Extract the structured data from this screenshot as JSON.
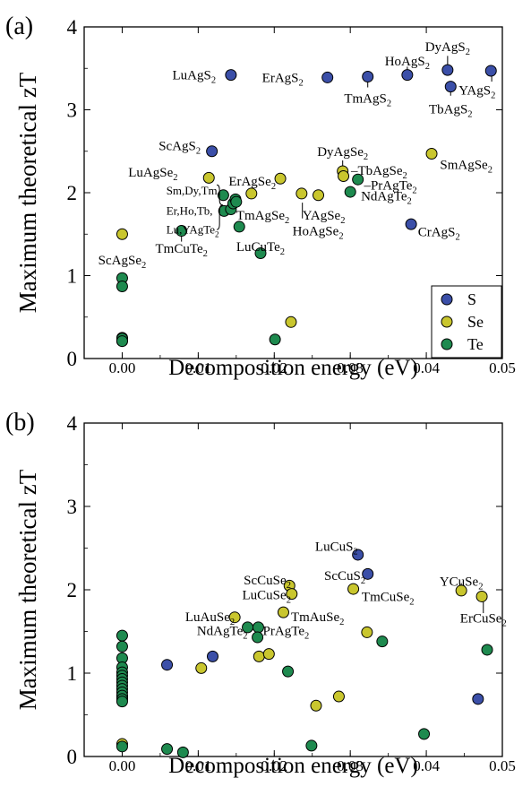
{
  "chart_data": [
    {
      "type": "scatter",
      "panel_label": "(a)",
      "xlabel": "Decomposition energy (eV)",
      "ylabel": "Maximum theoretical zT",
      "xlim": [
        -0.005,
        0.05
      ],
      "ylim": [
        0,
        4
      ],
      "xticks": [
        "0.00",
        "0.01",
        "0.02",
        "0.03",
        "0.04",
        "0.05"
      ],
      "xtick_values": [
        0,
        0.01,
        0.02,
        0.03,
        0.04,
        0.05
      ],
      "yticks": [
        "0",
        "1",
        "2",
        "3",
        "4"
      ],
      "ytick_values": [
        0,
        1,
        2,
        3,
        4
      ],
      "grid": false,
      "legend_position": "bottom-right",
      "legend": [
        {
          "label": "S",
          "color": "#3b4fa8"
        },
        {
          "label": "Se",
          "color": "#c9c62e"
        },
        {
          "label": "Te",
          "color": "#1e8a4f"
        }
      ],
      "series": [
        {
          "name": "S",
          "color": "#3b4fa8",
          "points": [
            [
              0.0118,
              2.5
            ],
            [
              0.0143,
              3.42
            ],
            [
              0.027,
              3.39
            ],
            [
              0.0323,
              3.4
            ],
            [
              0.0375,
              3.42
            ],
            [
              0.0428,
              3.48
            ],
            [
              0.0432,
              3.28
            ],
            [
              0.0485,
              3.47
            ],
            [
              0.038,
              1.62
            ]
          ]
        },
        {
          "name": "Se",
          "color": "#c9c62e",
          "points": [
            [
              0.0,
              1.5
            ],
            [
              0.0,
              0.25
            ],
            [
              0.0,
              0.21
            ],
            [
              0.0114,
              2.18
            ],
            [
              0.017,
              1.99
            ],
            [
              0.0208,
              2.17
            ],
            [
              0.0236,
              1.99
            ],
            [
              0.0258,
              1.97
            ],
            [
              0.029,
              2.26
            ],
            [
              0.0291,
              2.2
            ],
            [
              0.0407,
              2.47
            ],
            [
              0.0222,
              0.44
            ]
          ]
        },
        {
          "name": "Te",
          "color": "#1e8a4f",
          "points": [
            [
              0.0,
              0.97
            ],
            [
              0.0,
              0.87
            ],
            [
              0.0,
              0.24
            ],
            [
              0.0,
              0.21
            ],
            [
              0.0078,
              1.54
            ],
            [
              0.0133,
              1.97
            ],
            [
              0.0134,
              1.78
            ],
            [
              0.0143,
              1.8
            ],
            [
              0.0146,
              1.87
            ],
            [
              0.0149,
              1.92
            ],
            [
              0.015,
              1.89
            ],
            [
              0.0154,
              1.59
            ],
            [
              0.0182,
              1.27
            ],
            [
              0.0201,
              0.23
            ],
            [
              0.03,
              2.01
            ],
            [
              0.031,
              2.16
            ]
          ]
        }
      ],
      "annotations": [
        {
          "parts": [
            [
              "LuAgS",
              ""
            ],
            [
              "2",
              "sub"
            ]
          ],
          "x": 0.0066,
          "y": 3.42,
          "anchor": "start"
        },
        {
          "parts": [
            [
              "ErAgS",
              ""
            ],
            [
              "2",
              "sub"
            ]
          ],
          "x": 0.0184,
          "y": 3.39,
          "anchor": "start"
        },
        {
          "parts": [
            [
              "TmAgS",
              ""
            ],
            [
              "2",
              "sub"
            ]
          ],
          "x": 0.0323,
          "y": 3.14,
          "anchor": "middle"
        },
        {
          "parts": [
            [
              "HoAgS",
              ""
            ],
            [
              "2",
              "sub"
            ]
          ],
          "x": 0.0375,
          "y": 3.59,
          "anchor": "middle"
        },
        {
          "parts": [
            [
              "DyAgS",
              ""
            ],
            [
              "2",
              "sub"
            ]
          ],
          "x": 0.0428,
          "y": 3.76,
          "anchor": "middle"
        },
        {
          "parts": [
            [
              "YAgS",
              ""
            ],
            [
              "2",
              "sub"
            ]
          ],
          "x": 0.0491,
          "y": 3.24,
          "anchor": "end"
        },
        {
          "parts": [
            [
              "TbAgS",
              ""
            ],
            [
              "2",
              "sub"
            ]
          ],
          "x": 0.0432,
          "y": 3.01,
          "anchor": "middle"
        },
        {
          "parts": [
            [
              "ScAgS",
              ""
            ],
            [
              "2",
              "sub"
            ]
          ],
          "x": 0.0048,
          "y": 2.57,
          "anchor": "start"
        },
        {
          "parts": [
            [
              "LuAgSe",
              ""
            ],
            [
              "2",
              "sub"
            ]
          ],
          "x": 0.0008,
          "y": 2.25,
          "anchor": "start"
        },
        {
          "parts": [
            [
              "ErAgSe",
              ""
            ],
            [
              "2",
              "sub"
            ]
          ],
          "x": 0.014,
          "y": 2.14,
          "anchor": "start"
        },
        {
          "parts": [
            [
              "DyAgSe",
              ""
            ],
            [
              "2",
              "sub"
            ]
          ],
          "x": 0.029,
          "y": 2.5,
          "anchor": "middle"
        },
        {
          "parts": [
            [
              "–TbAgSe",
              ""
            ],
            [
              "2",
              "sub"
            ]
          ],
          "x": 0.0301,
          "y": 2.27,
          "anchor": "start"
        },
        {
          "parts": [
            [
              "–PrAgTe",
              ""
            ],
            [
              "2",
              "sub"
            ]
          ],
          "x": 0.0318,
          "y": 2.09,
          "anchor": "start"
        },
        {
          "parts": [
            [
              "SmAgSe",
              ""
            ],
            [
              "2",
              "sub"
            ]
          ],
          "x": 0.0418,
          "y": 2.34,
          "anchor": "start"
        },
        {
          "parts": [
            [
              "Sm,Dy,Tm,",
              ""
            ]
          ],
          "x": 0.0058,
          "y": 2.03,
          "anchor": "start",
          "small": true
        },
        {
          "parts": [
            [
              "Er,Ho,Tb,",
              ""
            ]
          ],
          "x": 0.0058,
          "y": 1.79,
          "anchor": "start",
          "small": true
        },
        {
          "parts": [
            [
              "Lu,YAgTe",
              ""
            ],
            [
              "2",
              "sub"
            ]
          ],
          "x": 0.0058,
          "y": 1.56,
          "anchor": "start",
          "small": true
        },
        {
          "parts": [
            [
              "TmAgSe",
              ""
            ],
            [
              "2",
              "sub"
            ]
          ],
          "x": 0.015,
          "y": 1.73,
          "anchor": "start"
        },
        {
          "parts": [
            [
              "YAgSe",
              ""
            ],
            [
              "2",
              "sub"
            ]
          ],
          "x": 0.0237,
          "y": 1.73,
          "anchor": "start"
        },
        {
          "parts": [
            [
              "NdAgTe",
              ""
            ],
            [
              "2",
              "sub"
            ]
          ],
          "x": 0.0314,
          "y": 1.96,
          "anchor": "start"
        },
        {
          "parts": [
            [
              "HoAgSe",
              ""
            ],
            [
              "2",
              "sub"
            ]
          ],
          "x": 0.0224,
          "y": 1.54,
          "anchor": "start"
        },
        {
          "parts": [
            [
              "CrAgS",
              ""
            ],
            [
              "2",
              "sub"
            ]
          ],
          "x": 0.0389,
          "y": 1.53,
          "anchor": "start"
        },
        {
          "parts": [
            [
              "ScAgSe",
              ""
            ],
            [
              "2",
              "sub"
            ]
          ],
          "x": 0.0,
          "y": 1.19,
          "anchor": "middle"
        },
        {
          "parts": [
            [
              "TmCuTe",
              ""
            ],
            [
              "2",
              "sub"
            ]
          ],
          "x": 0.0078,
          "y": 1.33,
          "anchor": "middle"
        },
        {
          "parts": [
            [
              "LuCuTe",
              ""
            ],
            [
              "2",
              "sub"
            ]
          ],
          "x": 0.015,
          "y": 1.35,
          "anchor": "start"
        }
      ],
      "leaders": [
        [
          [
            0.0323,
            3.27
          ],
          [
            0.0323,
            3.37
          ]
        ],
        [
          [
            0.0375,
            3.46
          ],
          [
            0.0375,
            3.52
          ]
        ],
        [
          [
            0.0428,
            3.52
          ],
          [
            0.0428,
            3.65
          ]
        ],
        [
          [
            0.0432,
            3.17
          ],
          [
            0.0432,
            3.24
          ]
        ],
        [
          [
            0.029,
            2.3
          ],
          [
            0.029,
            2.39
          ]
        ],
        [
          [
            0.0486,
            3.34
          ],
          [
            0.0486,
            3.43
          ]
        ],
        [
          [
            0.0237,
            1.88
          ],
          [
            0.0237,
            1.69
          ]
        ],
        [
          [
            0.0078,
            1.41
          ],
          [
            0.0078,
            1.5
          ]
        ]
      ]
    },
    {
      "type": "scatter",
      "panel_label": "(b)",
      "xlabel": "Decomposition energy (eV)",
      "ylabel": "Maximum theoretical zT",
      "xlim": [
        -0.005,
        0.05
      ],
      "ylim": [
        0,
        4
      ],
      "xticks": [
        "0.00",
        "0.01",
        "0.02",
        "0.03",
        "0.04",
        "0.05"
      ],
      "xtick_values": [
        0,
        0.01,
        0.02,
        0.03,
        0.04,
        0.05
      ],
      "yticks": [
        "0",
        "1",
        "2",
        "3",
        "4"
      ],
      "ytick_values": [
        0,
        1,
        2,
        3,
        4
      ],
      "grid": false,
      "series": [
        {
          "name": "S",
          "color": "#3b4fa8",
          "points": [
            [
              0.0,
              0.72
            ],
            [
              0.0059,
              1.1
            ],
            [
              0.0119,
              1.2
            ],
            [
              0.031,
              2.42
            ],
            [
              0.0323,
              2.19
            ],
            [
              0.0468,
              0.69
            ]
          ]
        },
        {
          "name": "Se",
          "color": "#c9c62e",
          "points": [
            [
              0.0,
              0.7
            ],
            [
              0.0,
              0.15
            ],
            [
              0.0104,
              1.06
            ],
            [
              0.0148,
              1.67
            ],
            [
              0.018,
              1.2
            ],
            [
              0.0193,
              1.23
            ],
            [
              0.0212,
              1.73
            ],
            [
              0.022,
              2.05
            ],
            [
              0.0223,
              1.95
            ],
            [
              0.0255,
              0.61
            ],
            [
              0.0285,
              0.72
            ],
            [
              0.0304,
              2.01
            ],
            [
              0.0322,
              1.49
            ],
            [
              0.0446,
              1.99
            ],
            [
              0.0473,
              1.92
            ]
          ]
        },
        {
          "name": "Te",
          "color": "#1e8a4f",
          "points": [
            [
              0.0,
              1.45
            ],
            [
              0.0,
              1.32
            ],
            [
              0.0,
              1.18
            ],
            [
              0.0,
              1.07
            ],
            [
              0.0,
              1.01
            ],
            [
              0.0,
              0.97
            ],
            [
              0.0,
              0.93
            ],
            [
              0.0,
              0.89
            ],
            [
              0.0,
              0.85
            ],
            [
              0.0,
              0.81
            ],
            [
              0.0,
              0.77
            ],
            [
              0.0,
              0.73
            ],
            [
              0.0,
              0.69
            ],
            [
              0.0,
              0.66
            ],
            [
              0.0,
              0.12
            ],
            [
              0.0059,
              0.09
            ],
            [
              0.008,
              0.05
            ],
            [
              0.0165,
              1.55
            ],
            [
              0.0179,
              1.55
            ],
            [
              0.0178,
              1.43
            ],
            [
              0.0218,
              1.02
            ],
            [
              0.0249,
              0.13
            ],
            [
              0.0342,
              1.38
            ],
            [
              0.0397,
              0.27
            ],
            [
              0.048,
              1.28
            ]
          ]
        }
      ],
      "annotations": [
        {
          "parts": [
            [
              "LuCuS",
              ""
            ],
            [
              "2",
              "sub"
            ]
          ],
          "x": 0.031,
          "y": 2.52,
          "anchor": "end"
        },
        {
          "parts": [
            [
              "ScCuS",
              ""
            ],
            [
              "2",
              "sub"
            ]
          ],
          "x": 0.032,
          "y": 2.17,
          "anchor": "end"
        },
        {
          "parts": [
            [
              "TmCuSe",
              ""
            ],
            [
              "2",
              "sub"
            ]
          ],
          "x": 0.0315,
          "y": 1.92,
          "anchor": "start"
        },
        {
          "parts": [
            [
              "YCuSe",
              ""
            ],
            [
              "2",
              "sub"
            ]
          ],
          "x": 0.0446,
          "y": 2.1,
          "anchor": "middle"
        },
        {
          "parts": [
            [
              "ErCuSe",
              ""
            ],
            [
              "2",
              "sub"
            ]
          ],
          "x": 0.0475,
          "y": 1.66,
          "anchor": "middle"
        },
        {
          "parts": [
            [
              "ScCuSe",
              ""
            ],
            [
              "2",
              "sub"
            ]
          ],
          "x": 0.0222,
          "y": 2.12,
          "anchor": "end"
        },
        {
          "parts": [
            [
              "LuCuSe",
              ""
            ],
            [
              "2",
              "sub"
            ]
          ],
          "x": 0.0222,
          "y": 1.94,
          "anchor": "end"
        },
        {
          "parts": [
            [
              "LuAuSe",
              ""
            ],
            [
              "2",
              "sub"
            ]
          ],
          "x": 0.0148,
          "y": 1.68,
          "anchor": "end"
        },
        {
          "parts": [
            [
              "NdAgTe",
              ""
            ],
            [
              "2",
              "sub"
            ]
          ],
          "x": 0.0165,
          "y": 1.51,
          "anchor": "end"
        },
        {
          "parts": [
            [
              "TmAuSe",
              ""
            ],
            [
              "2",
              "sub"
            ]
          ],
          "x": 0.0222,
          "y": 1.68,
          "anchor": "start"
        },
        {
          "parts": [
            [
              "PrAgTe",
              ""
            ],
            [
              "2",
              "sub"
            ]
          ],
          "x": 0.0185,
          "y": 1.51,
          "anchor": "start"
        }
      ],
      "leaders": [
        [
          [
            0.0446,
            2.04
          ],
          [
            0.0446,
            2.08
          ]
        ],
        [
          [
            0.0475,
            1.86
          ],
          [
            0.0475,
            1.72
          ]
        ]
      ]
    }
  ]
}
